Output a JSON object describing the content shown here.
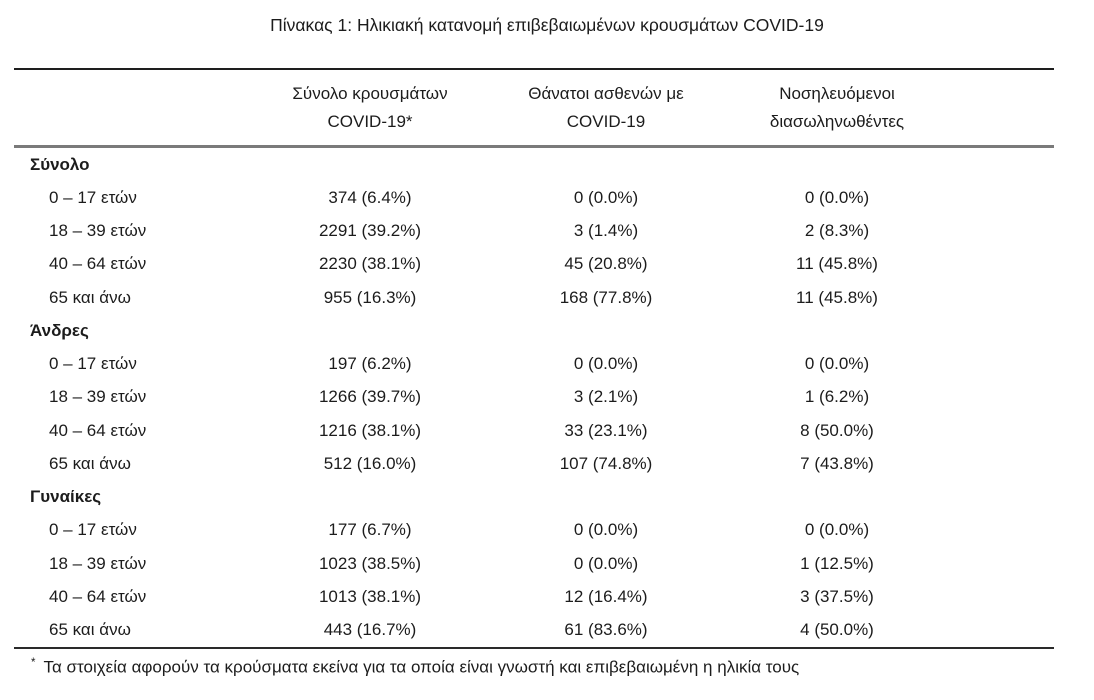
{
  "title": "Πίνακας 1: Ηλικιακή κατανομή επιβεβαιωμένων κρουσμάτων COVID-19",
  "table": {
    "columns": [
      {
        "line1": "Σύνολο κρουσμάτων",
        "line2": "COVID-19*"
      },
      {
        "line1": "Θάνατοι ασθενών με",
        "line2": "COVID-19"
      },
      {
        "line1": "Νοσηλευόμενοι",
        "line2": "διασωληνωθέντες"
      }
    ],
    "sections": [
      {
        "name": "Σύνολο",
        "rows": [
          {
            "label": "0 – 17 ετών",
            "cases": "374 (6.4%)",
            "deaths": "0 (0.0%)",
            "intubated": "0 (0.0%)"
          },
          {
            "label": "18 – 39 ετών",
            "cases": "2291 (39.2%)",
            "deaths": "3 (1.4%)",
            "intubated": "2 (8.3%)"
          },
          {
            "label": "40 – 64 ετών",
            "cases": "2230 (38.1%)",
            "deaths": "45 (20.8%)",
            "intubated": "11 (45.8%)"
          },
          {
            "label": "65 και άνω",
            "cases": "955 (16.3%)",
            "deaths": "168 (77.8%)",
            "intubated": "11 (45.8%)"
          }
        ]
      },
      {
        "name": "Άνδρες",
        "rows": [
          {
            "label": "0 – 17 ετών",
            "cases": "197 (6.2%)",
            "deaths": "0 (0.0%)",
            "intubated": "0 (0.0%)"
          },
          {
            "label": "18 – 39 ετών",
            "cases": "1266 (39.7%)",
            "deaths": "3 (2.1%)",
            "intubated": "1 (6.2%)"
          },
          {
            "label": "40 – 64 ετών",
            "cases": "1216 (38.1%)",
            "deaths": "33 (23.1%)",
            "intubated": "8 (50.0%)"
          },
          {
            "label": "65 και άνω",
            "cases": "512 (16.0%)",
            "deaths": "107 (74.8%)",
            "intubated": "7 (43.8%)"
          }
        ]
      },
      {
        "name": "Γυναίκες",
        "rows": [
          {
            "label": "0 – 17 ετών",
            "cases": "177 (6.7%)",
            "deaths": "0 (0.0%)",
            "intubated": "0 (0.0%)"
          },
          {
            "label": "18 – 39 ετών",
            "cases": "1023 (38.5%)",
            "deaths": "0 (0.0%)",
            "intubated": "1 (12.5%)"
          },
          {
            "label": "40 – 64 ετών",
            "cases": "1013 (38.1%)",
            "deaths": "12 (16.4%)",
            "intubated": "3 (37.5%)"
          },
          {
            "label": "65 και άνω",
            "cases": "443 (16.7%)",
            "deaths": "61 (83.6%)",
            "intubated": "4 (50.0%)"
          }
        ]
      }
    ]
  },
  "footnote": {
    "marker": "*",
    "text": "Τα στοιχεία αφορούν τα κρούσματα εκείνα για τα οποία είναι γνωστή και επιβεβαιωμένη η ηλικία τους"
  },
  "colors": {
    "text": "#1c1c1c",
    "rule_heavy": "#1e1e1e",
    "rule_mid": "#7a7a7a",
    "background": "#ffffff"
  }
}
